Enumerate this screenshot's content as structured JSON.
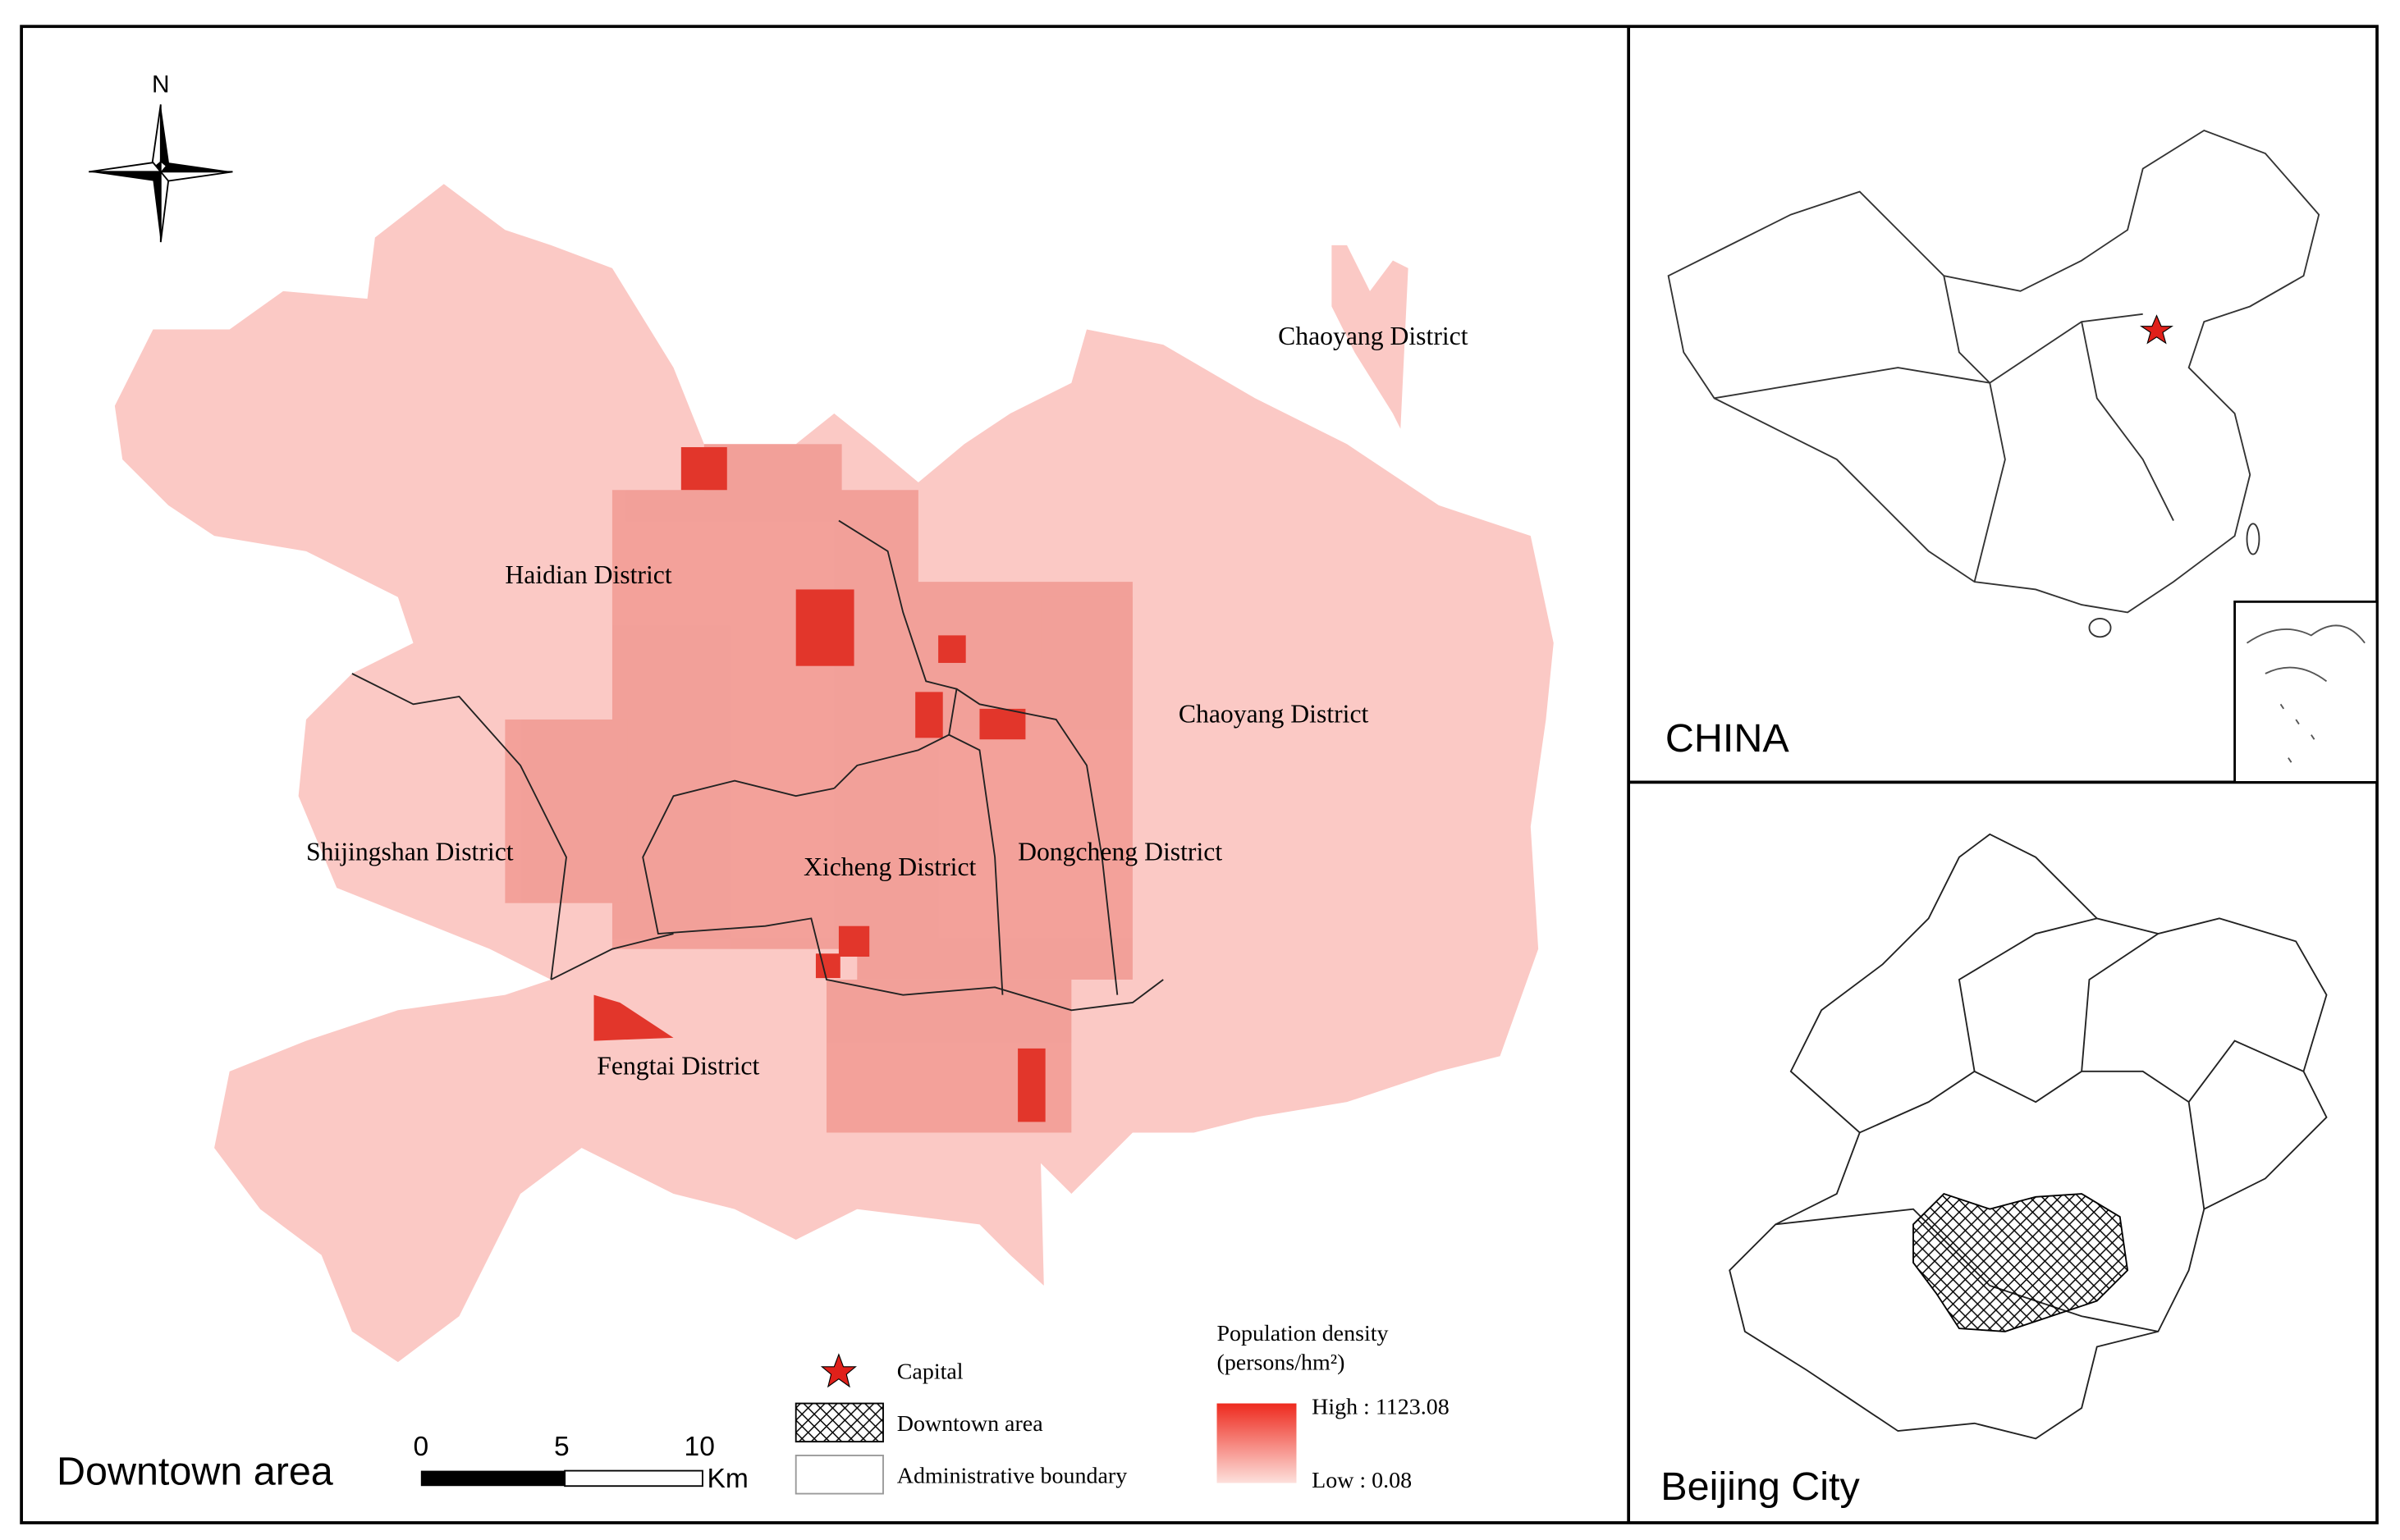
{
  "main_map": {
    "title": "Downtown area",
    "north": "N",
    "districts": [
      "Chaoyang District",
      "Haidian District",
      "Chaoyang District",
      "Shijingshan District",
      "Xicheng District",
      "Dongcheng District",
      "Fengtai District"
    ],
    "scale_bar": {
      "ticks": [
        "0",
        "5",
        "10"
      ],
      "unit": "Km"
    },
    "legend": {
      "items": [
        "Capital",
        "Downtown area",
        "Administrative boundary"
      ],
      "density": {
        "title": "Population density",
        "unit": "(persons/hm²)",
        "high": "High : 1123.08",
        "low": "Low : 0.08"
      }
    }
  },
  "inset_china": {
    "title": "CHINA"
  },
  "inset_beijing": {
    "title": "Beijing City"
  }
}
